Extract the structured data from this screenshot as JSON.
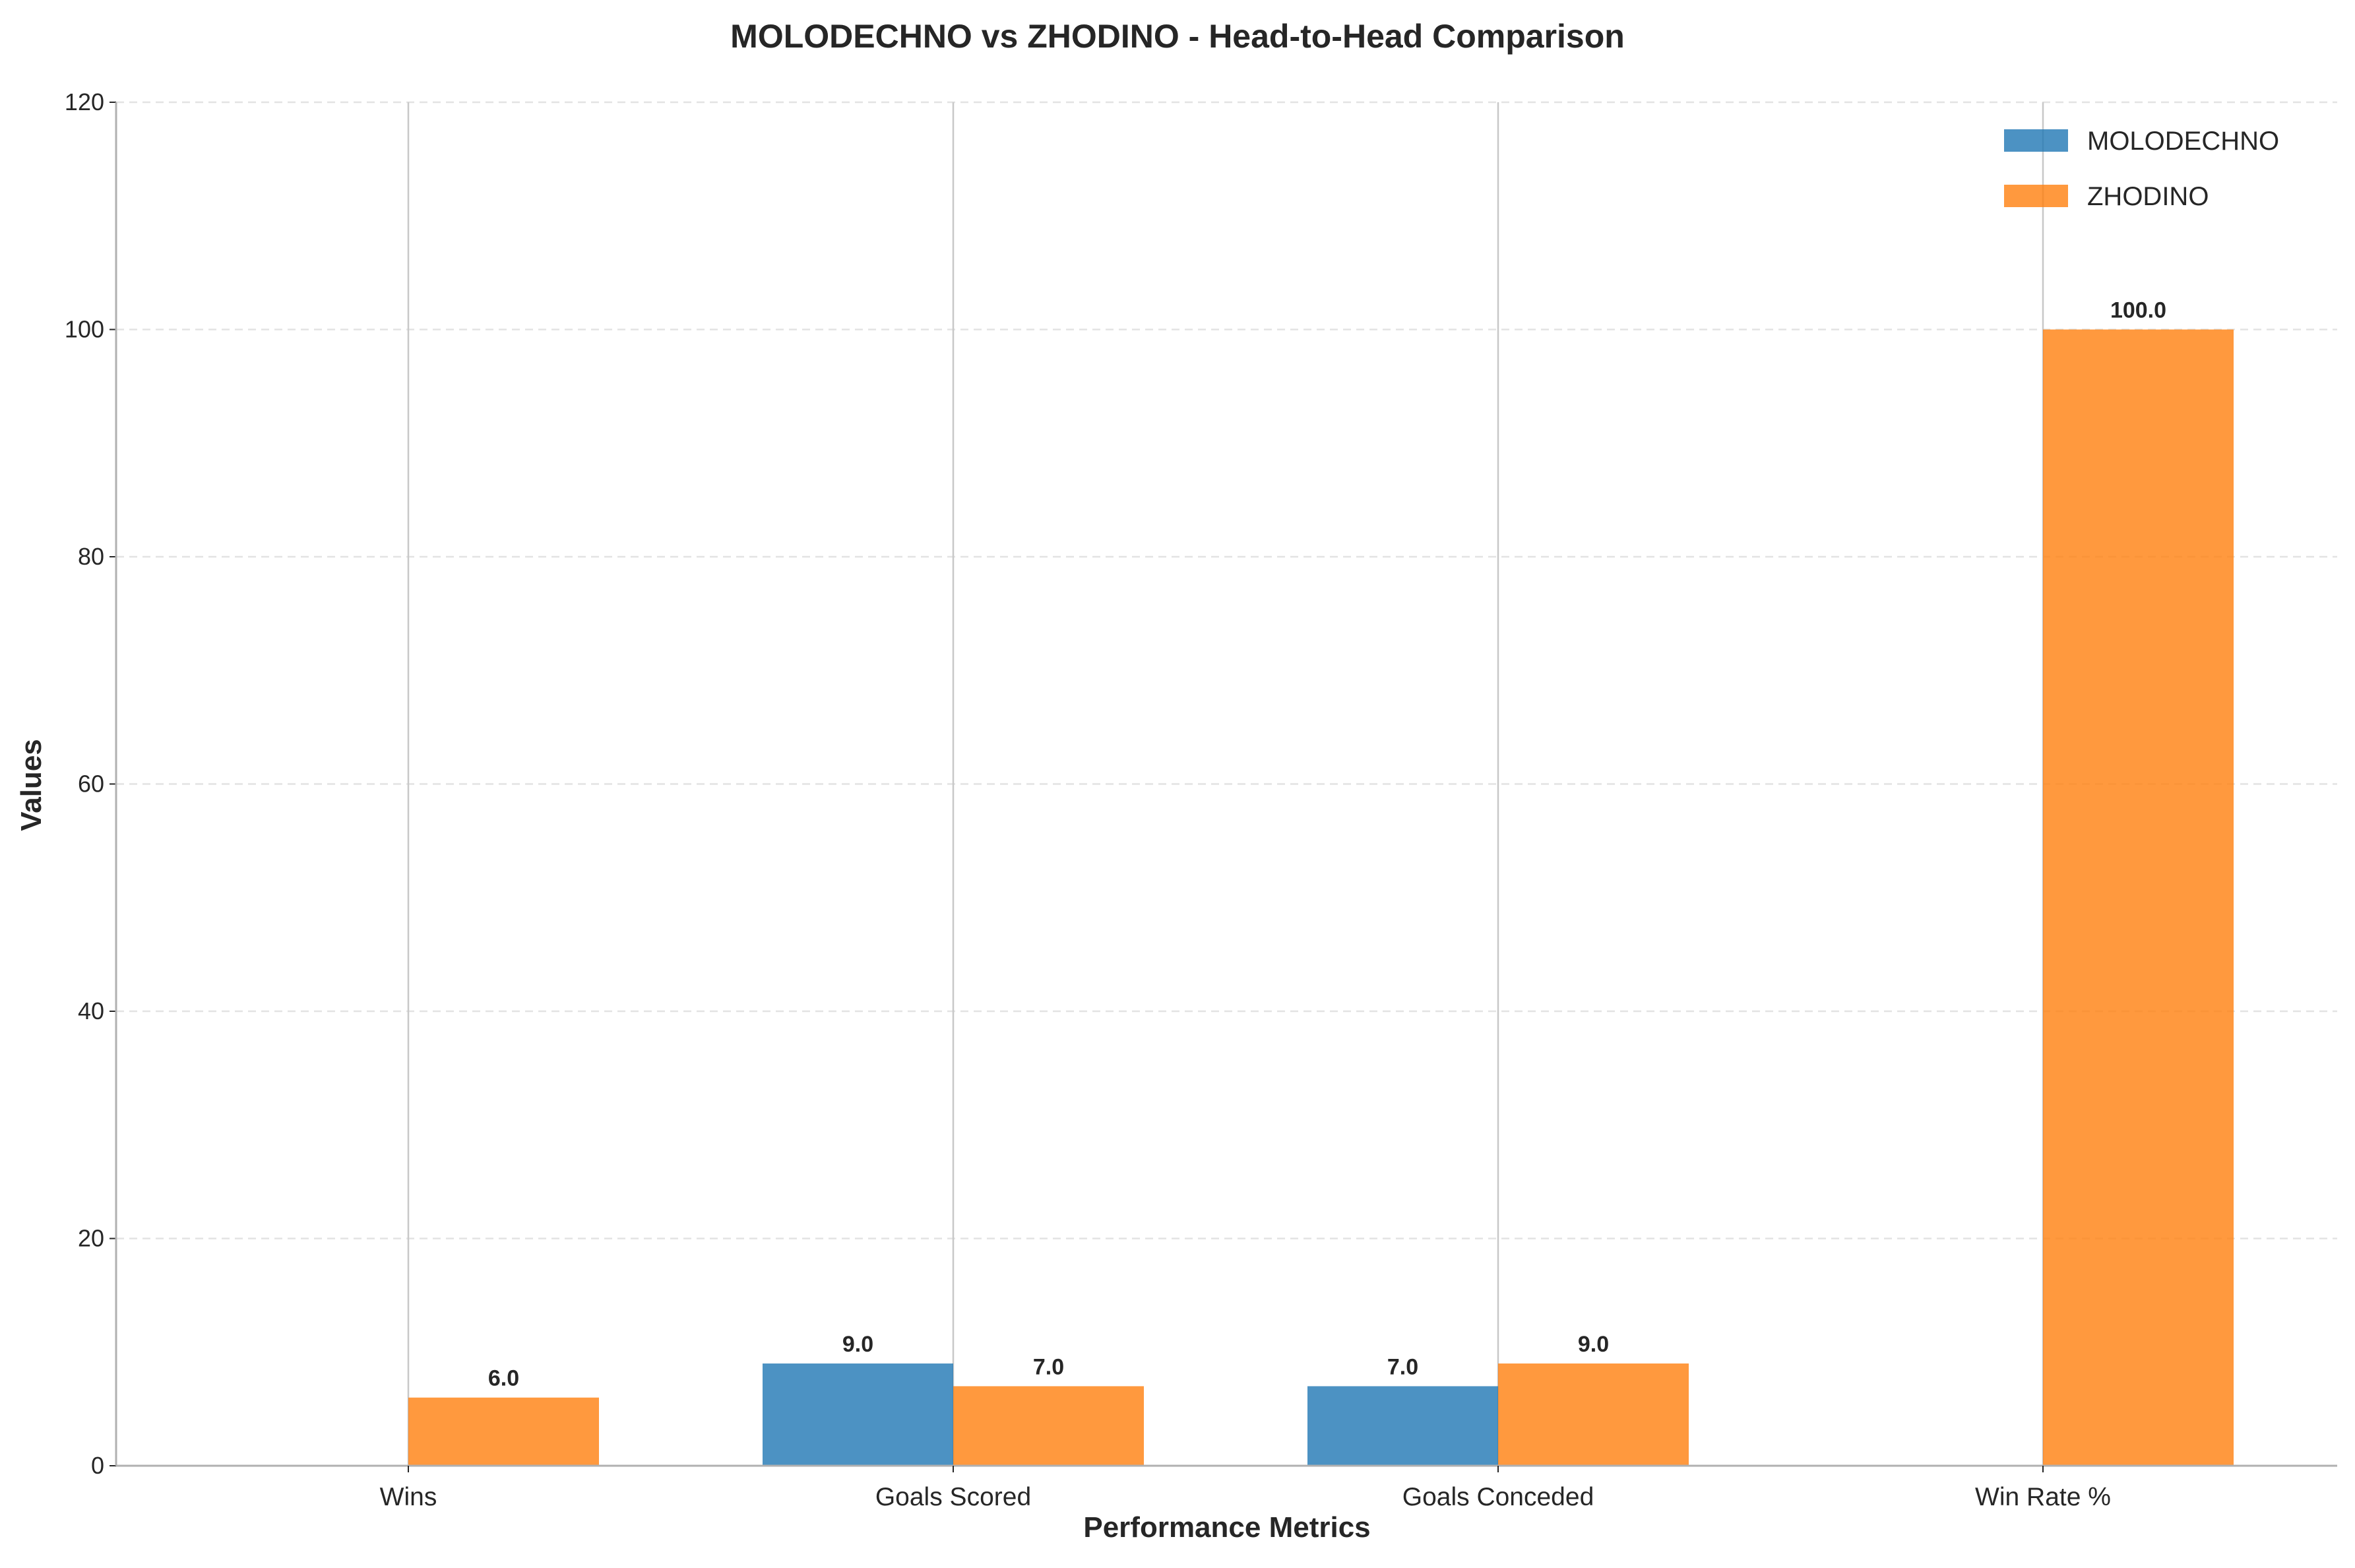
{
  "chart_data": {
    "type": "bar",
    "title": "MOLODECHNO vs ZHODINO - Head-to-Head Comparison",
    "xlabel": "Performance Metrics",
    "ylabel": "Values",
    "categories": [
      "Wins",
      "Goals Scored",
      "Goals Conceded",
      "Win Rate %"
    ],
    "series": [
      {
        "name": "MOLODECHNO",
        "color": "#1f77b4",
        "values": [
          0,
          9,
          7,
          0
        ]
      },
      {
        "name": "ZHODINO",
        "color": "#ff7f0e",
        "values": [
          6,
          7,
          9,
          100
        ]
      }
    ],
    "data_labels": [
      {
        "series": 1,
        "category": 0,
        "text": "6.0"
      },
      {
        "series": 0,
        "category": 1,
        "text": "9.0"
      },
      {
        "series": 1,
        "category": 1,
        "text": "7.0"
      },
      {
        "series": 0,
        "category": 2,
        "text": "7.0"
      },
      {
        "series": 1,
        "category": 2,
        "text": "9.0"
      },
      {
        "series": 1,
        "category": 3,
        "text": "100.0"
      }
    ],
    "ylim": [
      0,
      120
    ],
    "yticks": [
      "0",
      "20",
      "40",
      "60",
      "80",
      "100",
      "120"
    ],
    "grid": "y-dashed",
    "legend": "top-right"
  }
}
